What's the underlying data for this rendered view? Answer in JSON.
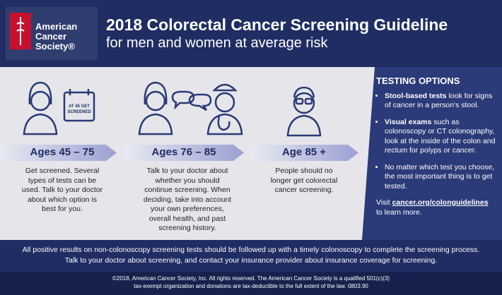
{
  "header": {
    "logo": [
      "American",
      "Cancer",
      "Society®"
    ],
    "title": "2018 Colorectal Cancer Screening Guideline",
    "subtitle": "for men and women at average risk"
  },
  "age_groups": [
    {
      "calendar": [
        "AT 45 GET",
        "SCREENED"
      ],
      "label": "Ages 45 – 75",
      "text": "Get screened. Several types of tests can be used. Talk to your doctor about which option is best for you."
    },
    {
      "label": "Ages 76 – 85",
      "text": "Talk to your doctor about whether you should continue screening. When deciding, take into account your own preferences, overall health, and past screening history."
    },
    {
      "label": "Age 85 +",
      "text": "People should no longer get colorectal cancer screening."
    }
  ],
  "testing_options": {
    "title": "TESTING OPTIONS",
    "items": [
      {
        "bold": "Stool-based tests",
        "text": "look for signs of cancer in a person's stool."
      },
      {
        "bold": "Visual exams",
        "text": "such as colonoscopy or CT colonography, look at the inside of the colon and rectum for polyps or cancer."
      },
      {
        "text": "No matter which test you choose, the most important thing is to get tested."
      }
    ],
    "visit": {
      "before": "Visit",
      "link": "cancer.org/colonguidelines",
      "after": "to learn more."
    }
  },
  "notice": [
    "All positive results on non-colonoscopy screening tests should be followed up with a timely colonoscopy to complete the screening process.",
    "Talk to your doctor about screening, and contact your insurance provider about insurance coverage for screening."
  ],
  "copyright": [
    "©2018, American Cancer Society, Inc. All rights reserved. The American Cancer Society is a qualified 501(c)(3)",
    "tax-exempt organization and donations are tax-deductible to the full extent of the law. 0803.90"
  ]
}
